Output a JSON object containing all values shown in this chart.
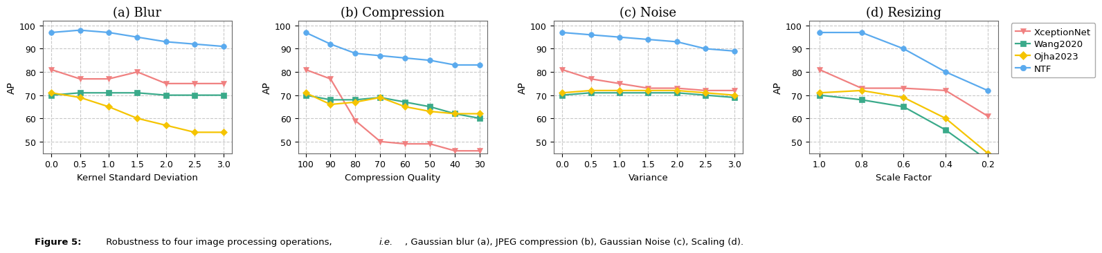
{
  "blur": {
    "title": "(a) Blur",
    "xlabel": "Kernel Standard Deviation",
    "x": [
      0.0,
      0.5,
      1.0,
      1.5,
      2.0,
      2.5,
      3.0
    ],
    "XceptionNet": [
      81,
      77,
      77,
      80,
      75,
      75,
      75
    ],
    "Wang2020": [
      70,
      71,
      71,
      71,
      70,
      70,
      70
    ],
    "Ojha2023": [
      71,
      69,
      65,
      60,
      57,
      54,
      54
    ],
    "NTF": [
      97,
      98,
      97,
      95,
      93,
      92,
      91
    ]
  },
  "compression": {
    "title": "(b) Compression",
    "xlabel": "Compression Quality",
    "x": [
      100,
      90,
      80,
      70,
      60,
      50,
      40,
      30
    ],
    "XceptionNet": [
      81,
      77,
      59,
      50,
      49,
      49,
      46,
      46
    ],
    "Wang2020": [
      70,
      68,
      68,
      69,
      67,
      65,
      62,
      60
    ],
    "Ojha2023": [
      71,
      66,
      67,
      69,
      65,
      63,
      62,
      62
    ],
    "NTF": [
      97,
      92,
      88,
      87,
      86,
      85,
      83,
      83
    ]
  },
  "noise": {
    "title": "(c) Noise",
    "xlabel": "Variance",
    "x": [
      0.0,
      0.5,
      1.0,
      1.5,
      2.0,
      2.5,
      3.0
    ],
    "XceptionNet": [
      81,
      77,
      75,
      73,
      73,
      72,
      72
    ],
    "Wang2020": [
      70,
      71,
      71,
      71,
      71,
      70,
      69
    ],
    "Ojha2023": [
      71,
      72,
      72,
      72,
      72,
      71,
      70
    ],
    "NTF": [
      97,
      96,
      95,
      94,
      93,
      90,
      89
    ]
  },
  "resizing": {
    "title": "(d) Resizing",
    "xlabel": "Scale Factor",
    "x": [
      1.0,
      0.8,
      0.6,
      0.4,
      0.2
    ],
    "XceptionNet": [
      81,
      73,
      73,
      72,
      61
    ],
    "Wang2020": [
      70,
      68,
      65,
      55,
      42
    ],
    "Ojha2023": [
      71,
      72,
      69,
      60,
      45
    ],
    "NTF": [
      97,
      97,
      90,
      80,
      72
    ]
  },
  "colors": {
    "XceptionNet": "#f08080",
    "Wang2020": "#3aaa8a",
    "Ojha2023": "#f5c400",
    "NTF": "#5aaaee"
  },
  "markers": {
    "XceptionNet": "v",
    "Wang2020": "s",
    "Ojha2023": "D",
    "NTF": "o"
  },
  "ylabel": "AP",
  "ylim": [
    45,
    102
  ],
  "yticks": [
    50,
    60,
    70,
    80,
    90,
    100
  ],
  "legend_entries": [
    "XceptionNet",
    "Wang2020",
    "Ojha2023",
    "NTF"
  ],
  "background_color": "#ffffff",
  "grid_color": "#c8c8c8"
}
